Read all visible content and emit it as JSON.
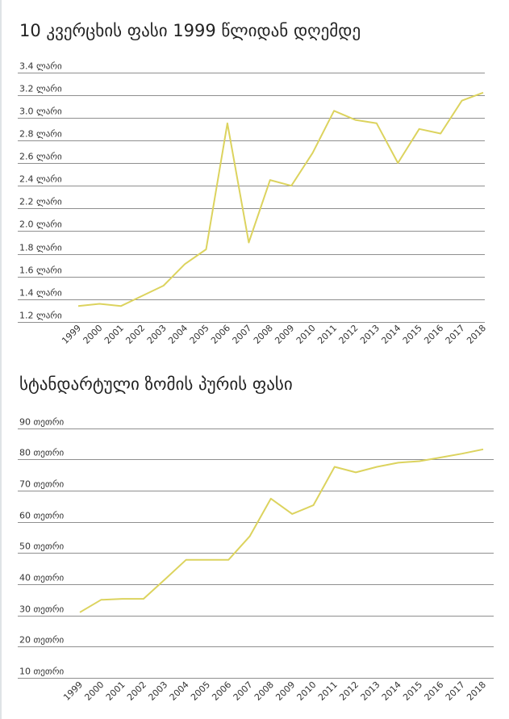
{
  "colors": {
    "line": "#dcd35e",
    "grid": "#8f8f8f"
  },
  "chart_data": [
    {
      "type": "line",
      "title": "10 კვერცხის ფასი 1999 წლიდან დღემდე",
      "xlabel": "",
      "ylabel": "",
      "y_unit": " ლარი",
      "grid": true,
      "legend": "none",
      "ylim": [
        1.2,
        3.4
      ],
      "yticks": [
        1.2,
        1.4,
        1.6,
        1.8,
        2.0,
        2.2,
        2.4,
        2.6,
        2.8,
        3.0,
        3.2,
        3.4
      ],
      "ytick_labels": [
        "1.2 ლარი",
        "1.4 ლარი",
        "1.6 ლარი",
        "1.8 ლარი",
        "2.0 ლარი",
        "2.2 ლარი",
        "2.4 ლარი",
        "2.6 ლარი",
        "2.8 ლარი",
        "3.0 ლარი",
        "3.2 ლარი",
        "3.4 ლარი"
      ],
      "categories": [
        "1999",
        "2000",
        "2001",
        "2002",
        "2003",
        "2004",
        "2005",
        "2006",
        "2007",
        "2008",
        "2009",
        "2010",
        "2011",
        "2012",
        "2013",
        "2014",
        "2015",
        "2016",
        "2017",
        "2018"
      ],
      "series": [
        {
          "values": [
            1.34,
            1.36,
            1.34,
            1.43,
            1.52,
            1.71,
            1.84,
            2.95,
            1.9,
            2.45,
            2.4,
            2.69,
            3.06,
            2.98,
            2.95,
            2.6,
            2.9,
            2.86,
            3.15,
            3.22
          ]
        }
      ]
    },
    {
      "type": "line",
      "title": "სტანდარტული ზომის პურის ფასი",
      "xlabel": "",
      "ylabel": "",
      "y_unit": " თეთრი",
      "grid": true,
      "legend": "none",
      "ylim": [
        10,
        90
      ],
      "yticks": [
        10,
        20,
        30,
        40,
        50,
        60,
        70,
        80,
        90
      ],
      "ytick_labels": [
        "10 თეთრი",
        "20 თეთრი",
        "30 თეთრი",
        "40 თეთრი",
        "50 თეთრი",
        "60 თეთრი",
        "70 თეთრი",
        "80 თეთრი",
        "90 თეთრი"
      ],
      "categories": [
        "1999",
        "2000",
        "2001",
        "2002",
        "2003",
        "2004",
        "2005",
        "2006",
        "2007",
        "2008",
        "2009",
        "2010",
        "2011",
        "2012",
        "2013",
        "2014",
        "2015",
        "2016",
        "2017",
        "2018"
      ],
      "series": [
        {
          "values": [
            31,
            35,
            35.3,
            35.3,
            41.5,
            47.8,
            47.8,
            47.8,
            55.3,
            67.4,
            62.5,
            65.3,
            77.6,
            75.8,
            77.6,
            78.9,
            79.4,
            80.6,
            81.8,
            83.2
          ]
        }
      ]
    }
  ]
}
